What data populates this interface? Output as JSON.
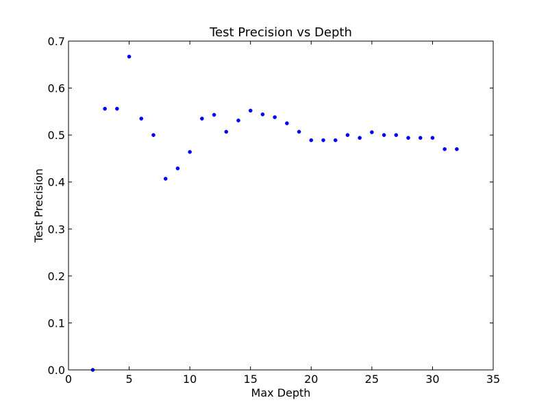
{
  "chart_data": {
    "type": "scatter",
    "title": "Test Precision vs Depth",
    "xlabel": "Max Depth",
    "ylabel": "Test Precision",
    "xlim": [
      0,
      35
    ],
    "ylim": [
      0.0,
      0.7
    ],
    "xticks": [
      "0",
      "5",
      "10",
      "15",
      "20",
      "25",
      "30",
      "35"
    ],
    "yticks": [
      "0.0",
      "0.1",
      "0.2",
      "0.3",
      "0.4",
      "0.5",
      "0.6",
      "0.7"
    ],
    "grid": false,
    "marker_color": "#0000ff",
    "series": [
      {
        "x": [
          2,
          3,
          4,
          5,
          6,
          7,
          8,
          9,
          10,
          11,
          12,
          13,
          14,
          15,
          16,
          17,
          18,
          19,
          20,
          21,
          22,
          23,
          24,
          25,
          26,
          27,
          28,
          29,
          30,
          31,
          32
        ],
        "y": [
          0.0,
          0.556,
          0.556,
          0.667,
          0.535,
          0.5,
          0.407,
          0.429,
          0.464,
          0.535,
          0.543,
          0.507,
          0.531,
          0.552,
          0.544,
          0.538,
          0.525,
          0.507,
          0.489,
          0.489,
          0.489,
          0.5,
          0.494,
          0.506,
          0.5,
          0.5,
          0.494,
          0.494,
          0.494,
          0.47,
          0.47
        ]
      }
    ]
  }
}
